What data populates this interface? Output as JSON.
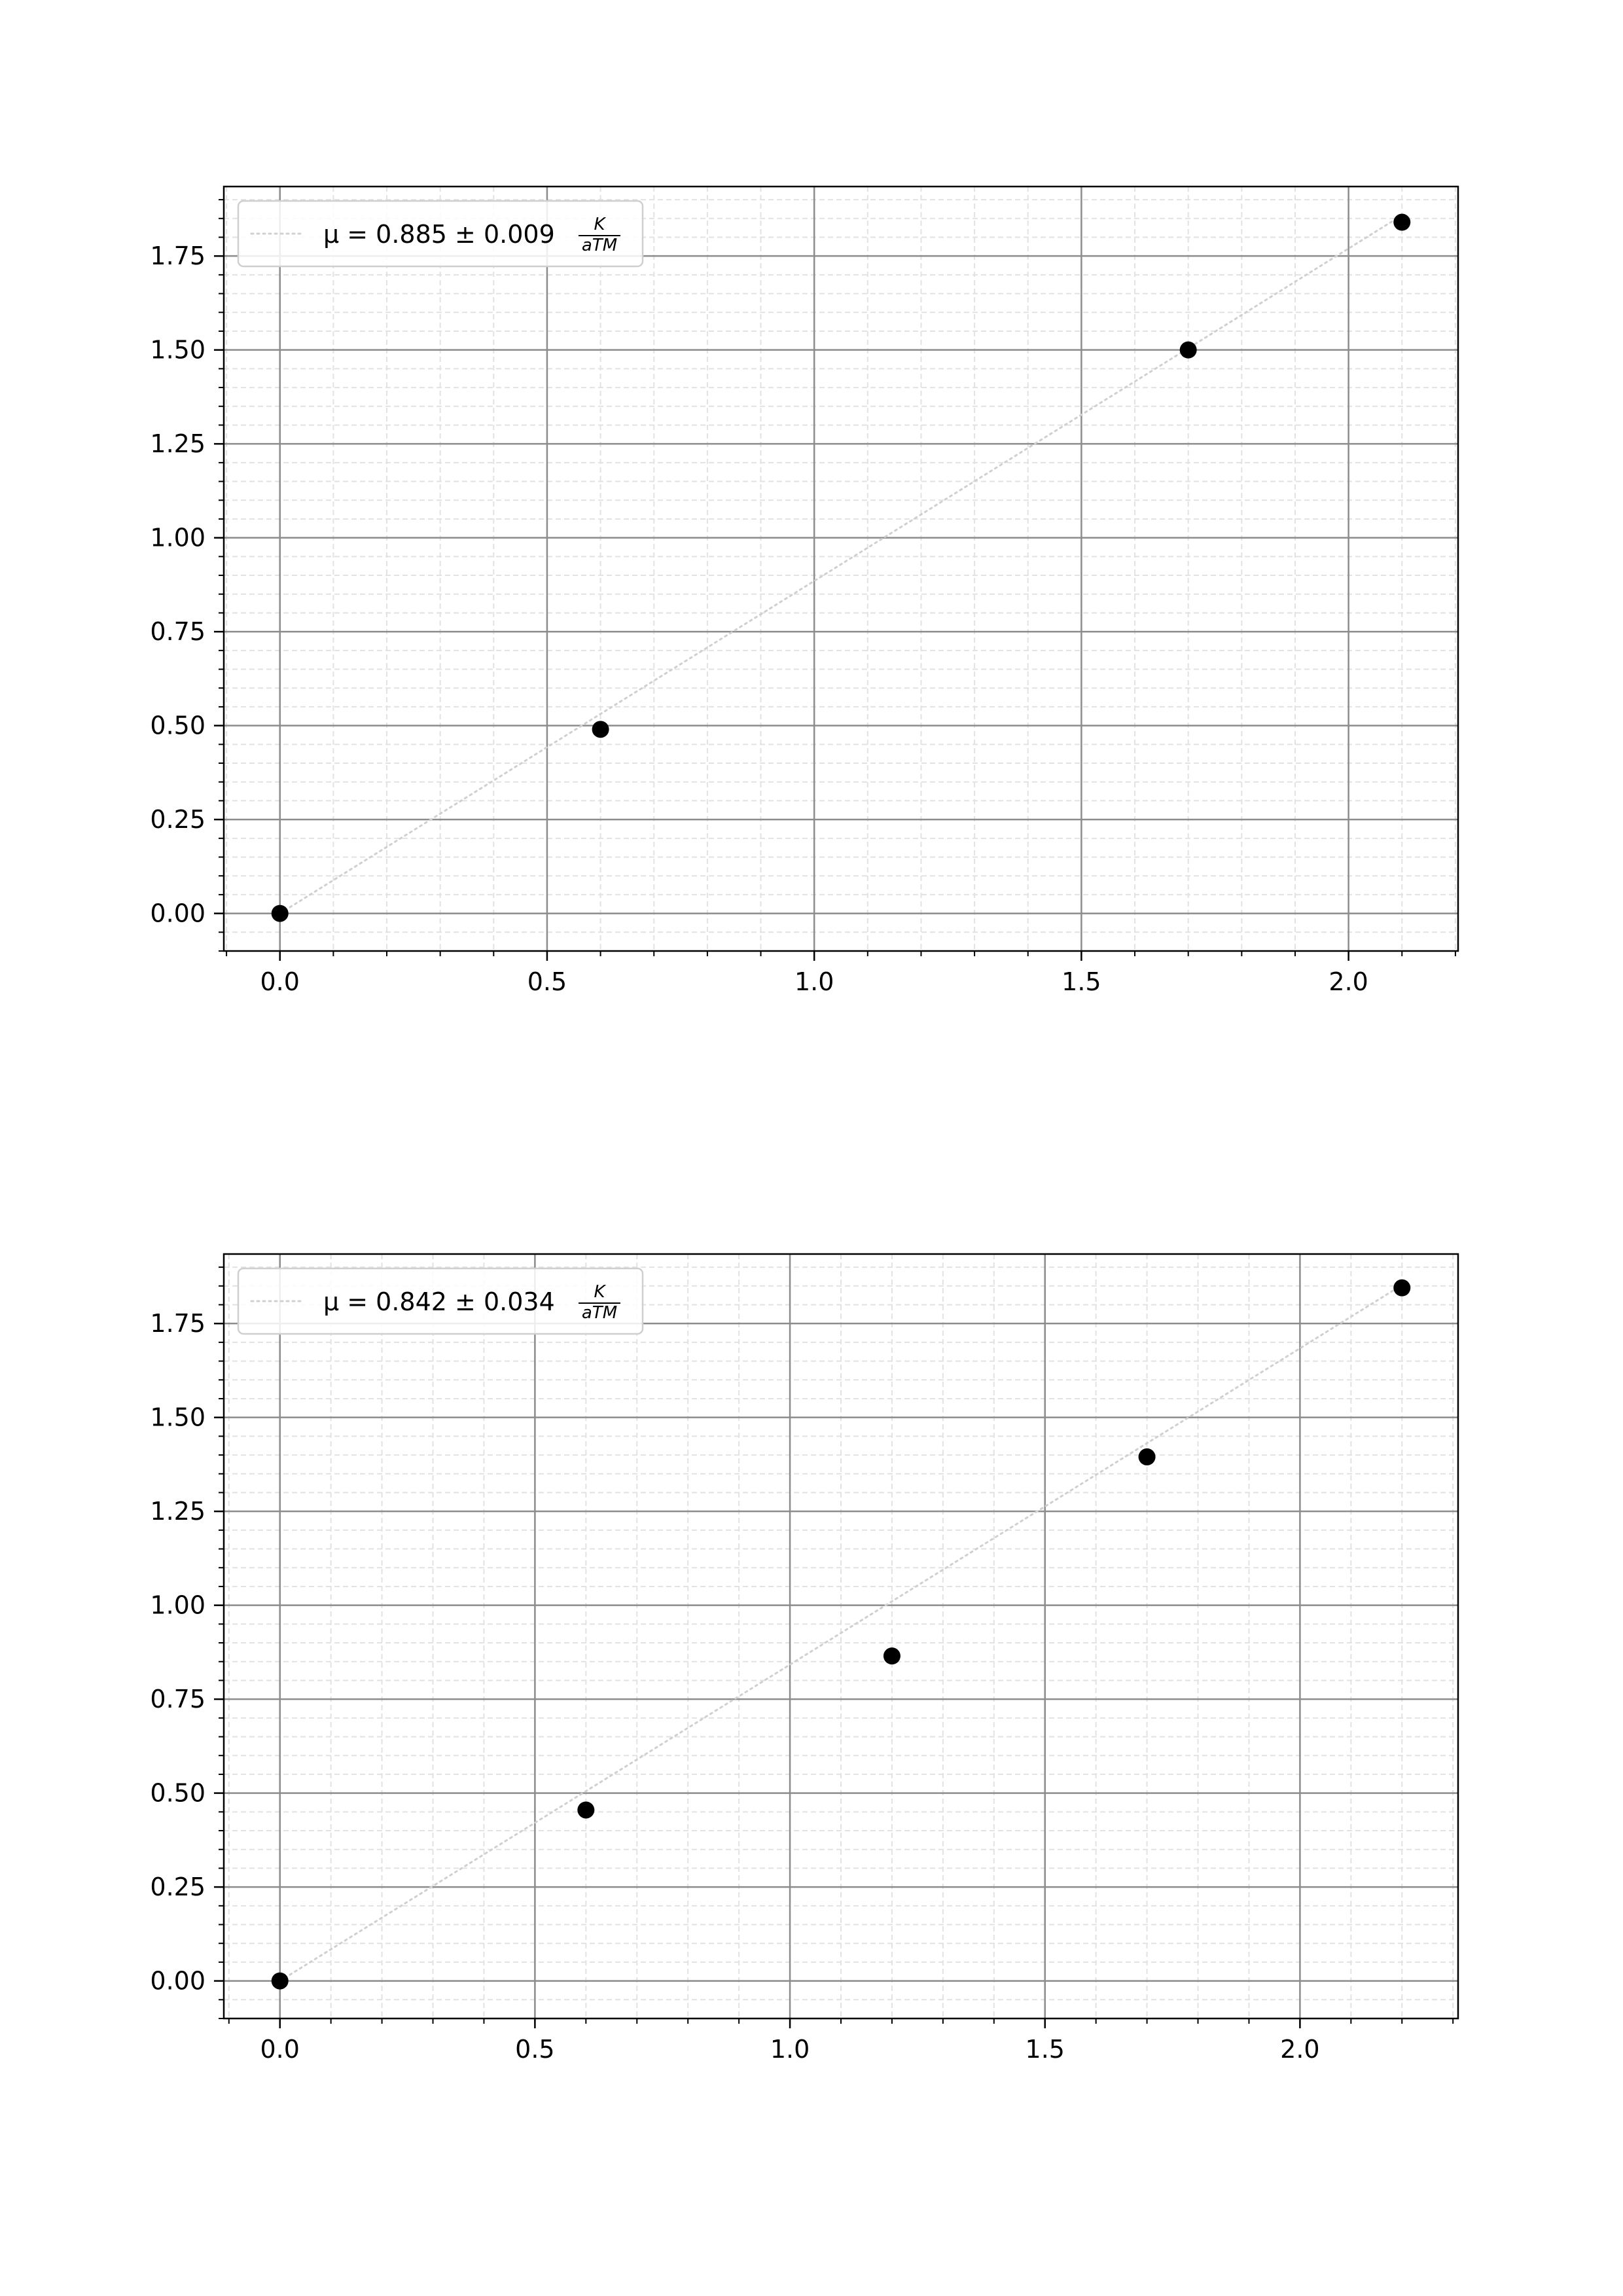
{
  "chart_data": [
    {
      "type": "scatter",
      "title": "",
      "xlabel": "",
      "ylabel": "",
      "xlim": [
        -0.105,
        2.205
      ],
      "ylim": [
        -0.1,
        1.935
      ],
      "xticks": [
        0.0,
        0.5,
        1.0,
        1.5,
        2.0
      ],
      "xtick_labels": [
        "0.0",
        "0.5",
        "1.0",
        "1.5",
        "2.0"
      ],
      "yticks": [
        0.0,
        0.25,
        0.5,
        0.75,
        1.0,
        1.25,
        1.5,
        1.75
      ],
      "ytick_labels": [
        "0.00",
        "0.25",
        "0.50",
        "0.75",
        "1.00",
        "1.25",
        "1.50",
        "1.75"
      ],
      "grid": true,
      "minor_grid": true,
      "legend_position": "top-left",
      "series": [
        {
          "kind": "points",
          "x": [
            0.0,
            0.6,
            1.7,
            2.1
          ],
          "y": [
            0.0,
            0.49,
            1.5,
            1.84
          ],
          "color": "#000000"
        },
        {
          "kind": "fit-line",
          "legend_label": "μ = 0.885 ± 0.009",
          "unit_numerator": "K",
          "unit_denominator": "aTM",
          "slope": 0.885,
          "color": "#d0d0d0"
        }
      ]
    },
    {
      "type": "scatter",
      "title": "",
      "xlabel": "",
      "ylabel": "",
      "xlim": [
        -0.11,
        2.31
      ],
      "ylim": [
        -0.1,
        1.935
      ],
      "xticks": [
        0.0,
        0.5,
        1.0,
        1.5,
        2.0
      ],
      "xtick_labels": [
        "0.0",
        "0.5",
        "1.0",
        "1.5",
        "2.0"
      ],
      "yticks": [
        0.0,
        0.25,
        0.5,
        0.75,
        1.0,
        1.25,
        1.5,
        1.75
      ],
      "ytick_labels": [
        "0.00",
        "0.25",
        "0.50",
        "0.75",
        "1.00",
        "1.25",
        "1.50",
        "1.75"
      ],
      "grid": true,
      "minor_grid": true,
      "legend_position": "top-left",
      "series": [
        {
          "kind": "points",
          "x": [
            0.0,
            0.6,
            1.2,
            1.7,
            2.2
          ],
          "y": [
            0.0,
            0.455,
            0.865,
            1.395,
            1.845
          ],
          "color": "#000000"
        },
        {
          "kind": "fit-line",
          "legend_label": "μ = 0.842 ± 0.034",
          "unit_numerator": "K",
          "unit_denominator": "aTM",
          "slope": 0.842,
          "color": "#d0d0d0"
        }
      ]
    }
  ]
}
